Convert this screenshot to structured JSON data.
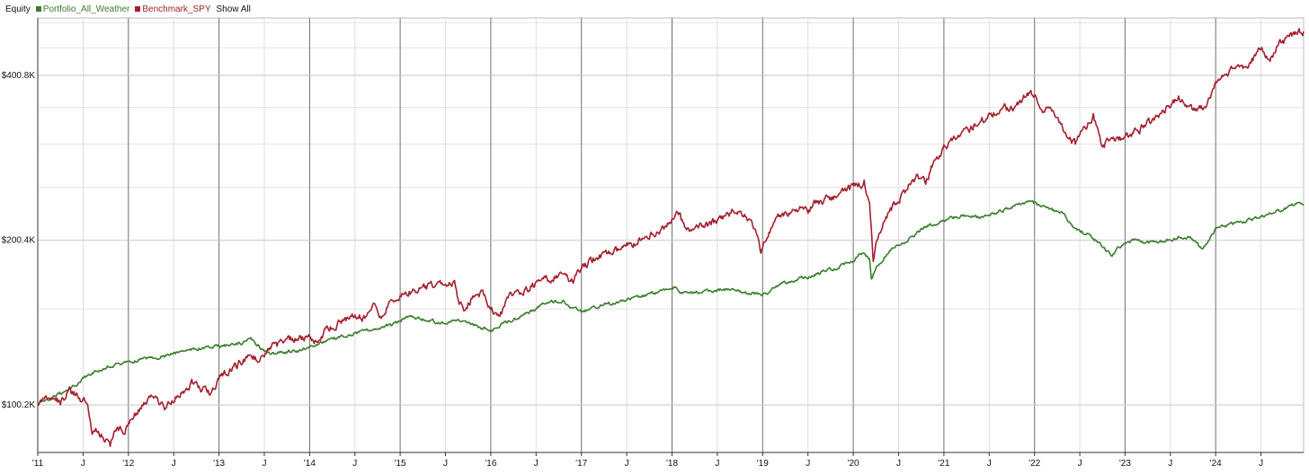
{
  "legend": {
    "title": "Equity",
    "show_all_label": "Show All"
  },
  "chart_data": {
    "type": "line",
    "title": "",
    "xlabel": "",
    "ylabel": "",
    "x_range": [
      2011.0,
      2024.97
    ],
    "y_range": [
      82000,
      510000
    ],
    "y_ticks": [
      {
        "value": 100200,
        "label": "$100.2K"
      },
      {
        "value": 200400,
        "label": "$200.4K"
      },
      {
        "value": 400800,
        "label": "$400.8K"
      }
    ],
    "x_ticks": [
      {
        "value": 2011.0,
        "label": "'11",
        "major": true
      },
      {
        "value": 2011.5,
        "label": "J",
        "major": false
      },
      {
        "value": 2012.0,
        "label": "'12",
        "major": true
      },
      {
        "value": 2012.5,
        "label": "J",
        "major": false
      },
      {
        "value": 2013.0,
        "label": "'13",
        "major": true
      },
      {
        "value": 2013.5,
        "label": "J",
        "major": false
      },
      {
        "value": 2014.0,
        "label": "'14",
        "major": true
      },
      {
        "value": 2014.5,
        "label": "J",
        "major": false
      },
      {
        "value": 2015.0,
        "label": "'15",
        "major": true
      },
      {
        "value": 2015.5,
        "label": "J",
        "major": false
      },
      {
        "value": 2016.0,
        "label": "'16",
        "major": true
      },
      {
        "value": 2016.5,
        "label": "J",
        "major": false
      },
      {
        "value": 2017.0,
        "label": "'17",
        "major": true
      },
      {
        "value": 2017.5,
        "label": "J",
        "major": false
      },
      {
        "value": 2018.0,
        "label": "'18",
        "major": true
      },
      {
        "value": 2018.5,
        "label": "J",
        "major": false
      },
      {
        "value": 2019.0,
        "label": "'19",
        "major": true
      },
      {
        "value": 2019.5,
        "label": "J",
        "major": false
      },
      {
        "value": 2020.0,
        "label": "'20",
        "major": true
      },
      {
        "value": 2020.5,
        "label": "J",
        "major": false
      },
      {
        "value": 2021.0,
        "label": "'21",
        "major": true
      },
      {
        "value": 2021.5,
        "label": "J",
        "major": false
      },
      {
        "value": 2022.0,
        "label": "'22",
        "major": true
      },
      {
        "value": 2022.5,
        "label": "J",
        "major": false
      },
      {
        "value": 2023.0,
        "label": "'23",
        "major": true
      },
      {
        "value": 2023.5,
        "label": "J",
        "major": false
      },
      {
        "value": 2024.0,
        "label": "'24",
        "major": true
      },
      {
        "value": 2024.5,
        "label": "J",
        "major": false
      }
    ],
    "grid": true,
    "legend_position": "top-left",
    "series": [
      {
        "name": "Portfolio_All_Weather",
        "color": "#3a7d2c",
        "points": [
          [
            2011.0,
            100200
          ],
          [
            2011.1,
            102000
          ],
          [
            2011.2,
            104000
          ],
          [
            2011.4,
            108000
          ],
          [
            2011.5,
            112000
          ],
          [
            2011.6,
            115000
          ],
          [
            2011.7,
            116000
          ],
          [
            2011.8,
            118000
          ],
          [
            2012.0,
            120000
          ],
          [
            2012.2,
            122000
          ],
          [
            2012.4,
            123000
          ],
          [
            2012.6,
            126000
          ],
          [
            2012.8,
            127000
          ],
          [
            2013.0,
            128000
          ],
          [
            2013.2,
            129000
          ],
          [
            2013.35,
            132000
          ],
          [
            2013.45,
            128000
          ],
          [
            2013.55,
            124000
          ],
          [
            2013.7,
            125000
          ],
          [
            2013.9,
            126000
          ],
          [
            2014.0,
            128000
          ],
          [
            2014.3,
            133000
          ],
          [
            2014.6,
            137000
          ],
          [
            2014.9,
            140000
          ],
          [
            2015.0,
            143000
          ],
          [
            2015.1,
            146000
          ],
          [
            2015.3,
            143000
          ],
          [
            2015.5,
            141000
          ],
          [
            2015.6,
            143000
          ],
          [
            2015.8,
            140000
          ],
          [
            2016.0,
            137000
          ],
          [
            2016.1,
            140000
          ],
          [
            2016.3,
            145000
          ],
          [
            2016.5,
            150000
          ],
          [
            2016.6,
            154000
          ],
          [
            2016.8,
            155000
          ],
          [
            2016.9,
            150000
          ],
          [
            2017.0,
            148000
          ],
          [
            2017.2,
            152000
          ],
          [
            2017.5,
            156000
          ],
          [
            2017.8,
            160000
          ],
          [
            2018.05,
            165000
          ],
          [
            2018.1,
            160000
          ],
          [
            2018.3,
            161000
          ],
          [
            2018.6,
            163000
          ],
          [
            2018.8,
            161000
          ],
          [
            2019.0,
            159000
          ],
          [
            2019.2,
            166000
          ],
          [
            2019.5,
            172000
          ],
          [
            2019.8,
            178000
          ],
          [
            2020.0,
            184000
          ],
          [
            2020.1,
            190000
          ],
          [
            2020.18,
            185000
          ],
          [
            2020.2,
            170000
          ],
          [
            2020.25,
            178000
          ],
          [
            2020.4,
            192000
          ],
          [
            2020.6,
            200000
          ],
          [
            2020.8,
            212000
          ],
          [
            2021.0,
            218000
          ],
          [
            2021.2,
            222000
          ],
          [
            2021.4,
            220000
          ],
          [
            2021.6,
            226000
          ],
          [
            2021.8,
            232000
          ],
          [
            2021.95,
            236000
          ],
          [
            2022.1,
            230000
          ],
          [
            2022.3,
            225000
          ],
          [
            2022.45,
            210000
          ],
          [
            2022.6,
            205000
          ],
          [
            2022.75,
            195000
          ],
          [
            2022.85,
            188000
          ],
          [
            2022.95,
            195000
          ],
          [
            2023.1,
            200000
          ],
          [
            2023.3,
            198000
          ],
          [
            2023.5,
            201000
          ],
          [
            2023.7,
            203000
          ],
          [
            2023.8,
            197000
          ],
          [
            2023.85,
            192000
          ],
          [
            2024.0,
            210000
          ],
          [
            2024.2,
            215000
          ],
          [
            2024.4,
            219000
          ],
          [
            2024.6,
            224000
          ],
          [
            2024.8,
            230000
          ],
          [
            2024.92,
            234000
          ],
          [
            2024.97,
            232000
          ]
        ]
      },
      {
        "name": "Benchmark_SPY",
        "color": "#a3202e",
        "points": [
          [
            2011.0,
            100200
          ],
          [
            2011.08,
            103000
          ],
          [
            2011.15,
            104500
          ],
          [
            2011.25,
            101000
          ],
          [
            2011.35,
            106000
          ],
          [
            2011.45,
            104000
          ],
          [
            2011.55,
            100000
          ],
          [
            2011.6,
            88000
          ],
          [
            2011.65,
            90000
          ],
          [
            2011.75,
            86000
          ],
          [
            2011.8,
            84000
          ],
          [
            2011.85,
            91000
          ],
          [
            2011.95,
            90000
          ],
          [
            2012.1,
            97000
          ],
          [
            2012.2,
            101000
          ],
          [
            2012.3,
            104000
          ],
          [
            2012.4,
            98000
          ],
          [
            2012.5,
            102000
          ],
          [
            2012.6,
            106000
          ],
          [
            2012.7,
            110000
          ],
          [
            2012.8,
            107000
          ],
          [
            2012.9,
            105000
          ],
          [
            2013.0,
            112000
          ],
          [
            2013.2,
            118000
          ],
          [
            2013.35,
            124000
          ],
          [
            2013.45,
            120000
          ],
          [
            2013.6,
            128000
          ],
          [
            2013.8,
            132000
          ],
          [
            2014.0,
            134000
          ],
          [
            2014.1,
            130000
          ],
          [
            2014.2,
            138000
          ],
          [
            2014.35,
            142000
          ],
          [
            2014.5,
            147000
          ],
          [
            2014.6,
            144000
          ],
          [
            2014.7,
            151000
          ],
          [
            2014.8,
            146000
          ],
          [
            2014.9,
            156000
          ],
          [
            2015.0,
            160000
          ],
          [
            2015.2,
            163000
          ],
          [
            2015.45,
            168000
          ],
          [
            2015.6,
            167000
          ],
          [
            2015.65,
            154000
          ],
          [
            2015.72,
            149000
          ],
          [
            2015.8,
            158000
          ],
          [
            2015.9,
            161000
          ],
          [
            2016.0,
            149000
          ],
          [
            2016.1,
            146000
          ],
          [
            2016.2,
            157000
          ],
          [
            2016.4,
            163000
          ],
          [
            2016.6,
            170000
          ],
          [
            2016.8,
            172000
          ],
          [
            2016.9,
            168000
          ],
          [
            2017.0,
            178000
          ],
          [
            2017.2,
            188000
          ],
          [
            2017.4,
            192000
          ],
          [
            2017.6,
            198000
          ],
          [
            2017.8,
            205000
          ],
          [
            2018.0,
            217000
          ],
          [
            2018.08,
            224000
          ],
          [
            2018.15,
            208000
          ],
          [
            2018.3,
            211000
          ],
          [
            2018.5,
            217000
          ],
          [
            2018.7,
            228000
          ],
          [
            2018.8,
            224000
          ],
          [
            2018.9,
            213000
          ],
          [
            2018.98,
            192000
          ],
          [
            2019.05,
            205000
          ],
          [
            2019.2,
            222000
          ],
          [
            2019.4,
            230000
          ],
          [
            2019.5,
            226000
          ],
          [
            2019.6,
            235000
          ],
          [
            2019.8,
            241000
          ],
          [
            2020.0,
            250000
          ],
          [
            2020.12,
            256000
          ],
          [
            2020.18,
            236000
          ],
          [
            2020.22,
            184000
          ],
          [
            2020.26,
            198000
          ],
          [
            2020.35,
            222000
          ],
          [
            2020.5,
            236000
          ],
          [
            2020.6,
            250000
          ],
          [
            2020.7,
            262000
          ],
          [
            2020.8,
            256000
          ],
          [
            2020.9,
            280000
          ],
          [
            2021.0,
            296000
          ],
          [
            2021.2,
            312000
          ],
          [
            2021.4,
            330000
          ],
          [
            2021.6,
            345000
          ],
          [
            2021.8,
            352000
          ],
          [
            2021.92,
            372000
          ],
          [
            2022.0,
            368000
          ],
          [
            2022.1,
            346000
          ],
          [
            2022.2,
            350000
          ],
          [
            2022.3,
            325000
          ],
          [
            2022.45,
            300000
          ],
          [
            2022.55,
            318000
          ],
          [
            2022.65,
            336000
          ],
          [
            2022.75,
            296000
          ],
          [
            2022.85,
            310000
          ],
          [
            2022.95,
            306000
          ],
          [
            2023.1,
            316000
          ],
          [
            2023.3,
            330000
          ],
          [
            2023.5,
            356000
          ],
          [
            2023.6,
            364000
          ],
          [
            2023.8,
            345000
          ],
          [
            2023.9,
            355000
          ],
          [
            2024.0,
            388000
          ],
          [
            2024.2,
            412000
          ],
          [
            2024.35,
            418000
          ],
          [
            2024.5,
            448000
          ],
          [
            2024.6,
            432000
          ],
          [
            2024.7,
            456000
          ],
          [
            2024.85,
            476000
          ],
          [
            2024.97,
            482000
          ]
        ]
      }
    ]
  }
}
